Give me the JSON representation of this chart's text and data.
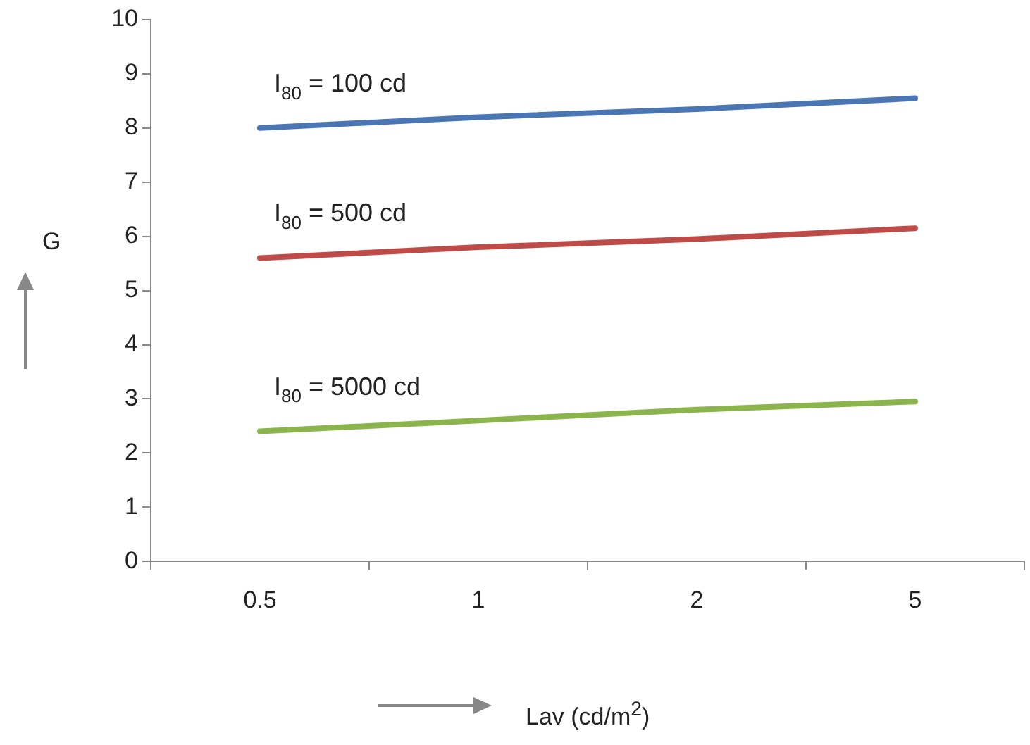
{
  "chart_data": {
    "type": "line",
    "xlabel": "Lav (cd/m$^{2}$)",
    "ylabel": "G",
    "categories": [
      "0.5",
      "1",
      "2",
      "5"
    ],
    "series": [
      {
        "name": "I$_{80}$ = 100 cd",
        "color": "#4a76b4",
        "values": [
          8.0,
          8.2,
          8.35,
          8.55
        ]
      },
      {
        "name": "I$_{80}$ = 500 cd",
        "color": "#be4b48",
        "values": [
          5.6,
          5.8,
          5.95,
          6.15
        ]
      },
      {
        "name": "I$_{80}$ = 5000 cd",
        "color": "#8bb44d",
        "values": [
          2.4,
          2.6,
          2.8,
          2.95
        ]
      }
    ],
    "ylim": [
      0,
      10
    ],
    "yticks": [
      0,
      1,
      2,
      3,
      4,
      5,
      6,
      7,
      8,
      9,
      10
    ],
    "grid": false,
    "legend": false,
    "marker": "none",
    "line_style": "solid"
  }
}
